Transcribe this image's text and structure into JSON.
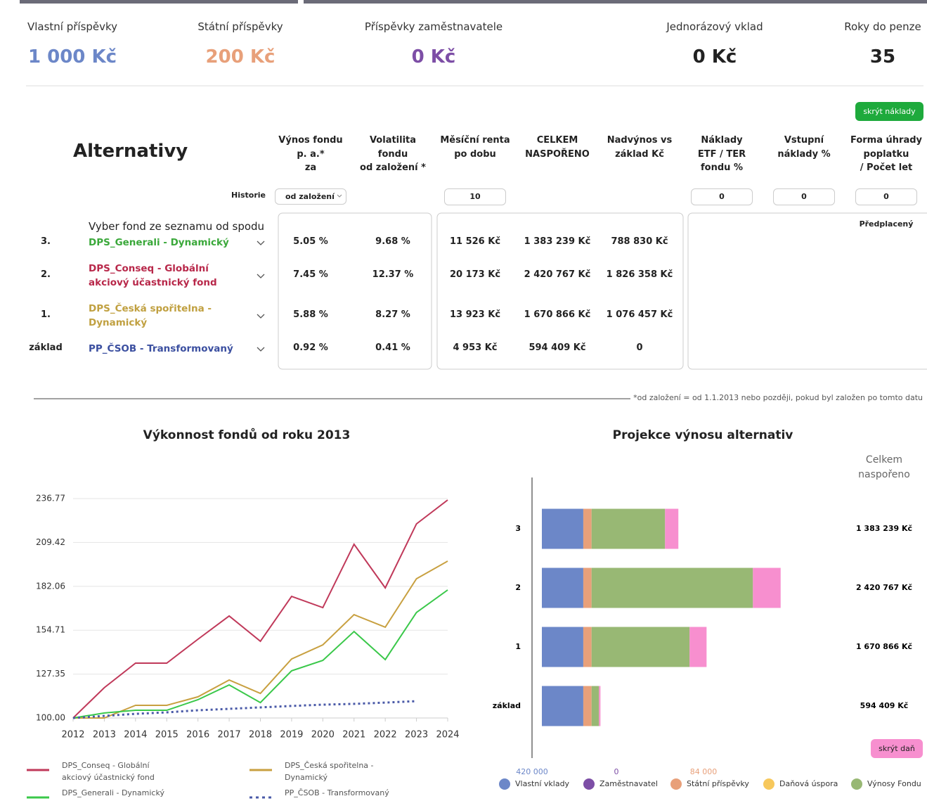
{
  "summary": [
    {
      "label": "Vlastní příspěvky",
      "value": "1 000 Kč",
      "color": "#6c87c8"
    },
    {
      "label": "Státní příspěvky",
      "value": "200 Kč",
      "color": "#e8a07a"
    },
    {
      "label": "Příspěvky zaměstnavatele",
      "value": "0 Kč",
      "color": "#7d4ea6"
    },
    {
      "label": "Jednorázový vklad",
      "value": "0 Kč",
      "color": "#222222"
    },
    {
      "label": "Roky do penze",
      "value": "35",
      "color": "#222222"
    }
  ],
  "table": {
    "title": "Alternativy",
    "button": "skrýt náklady",
    "headers": [
      "Výnos fondu\np. a.*\nza",
      "Volatilita\nfondu\nod založení *",
      "Měsíční renta\npo dobu",
      "CELKEM\nNASPOŘENO",
      "Nadvýnos vs\nzáklad Kč",
      "Náklady\nETF / TER\nfondu %",
      "Vstupní\nnáklady %",
      "Forma úhrady\npoplatku\n/ Počet let"
    ],
    "history_label": "Historie",
    "history_select": "od založení",
    "inputs": {
      "months": "10",
      "ter": "0",
      "entry": "0",
      "years": "0"
    },
    "fee_form": "Předplacený",
    "select_prompt": "Vyber fond ze seznamu od spodu",
    "rows": [
      {
        "rank": "3.",
        "fund": "DPS_Generali - Dynamický",
        "color": "#3aa83a",
        "cells": [
          "5.05 %",
          "9.68 %",
          "11 526 Kč",
          "1 383 239 Kč",
          "788 830 Kč"
        ]
      },
      {
        "rank": "2.",
        "fund": "DPS_Conseq - Globální akciový účastnický fond",
        "color": "#b8284a",
        "cells": [
          "7.45 %",
          "12.37 %",
          "20 173 Kč",
          "2 420 767 Kč",
          "1 826 358 Kč"
        ]
      },
      {
        "rank": "1.",
        "fund": "DPS_Česká spořitelna - Dynamický",
        "color": "#c0a040",
        "cells": [
          "5.88 %",
          "8.27 %",
          "13 923 Kč",
          "1 670 866 Kč",
          "1 076 457 Kč"
        ]
      },
      {
        "rank": "základ",
        "fund": "PP_ČSOB - Transformovaný",
        "color": "#3b4fa0",
        "cells": [
          "0.92 %",
          "0.41 %",
          "4 953 Kč",
          "594 409 Kč",
          "0"
        ]
      }
    ],
    "footnote": "*od založení = od 1.1.2013 nebo později, pokud byl založen po tomto datu"
  },
  "chart_data": [
    {
      "type": "line",
      "title": "Výkonnost fondů od roku 2013",
      "x": [
        2012,
        2013,
        2014,
        2015,
        2016,
        2017,
        2018,
        2019,
        2020,
        2021,
        2022,
        2023,
        2024
      ],
      "xlim": [
        2012,
        2024
      ],
      "xticks": [
        2012,
        2013,
        2014,
        2015,
        2016,
        2017,
        2018,
        2019,
        2020,
        2021,
        2022,
        2023,
        2024
      ],
      "ylim": [
        100,
        236.77
      ],
      "yticks": [
        {
          "value": 100,
          "label": "100.00"
        },
        127.35,
        154.71,
        182.06,
        209.42,
        236.77
      ],
      "grid": true,
      "series": [
        {
          "name": "DPS_Conseq - Globální akciový účastnický fond",
          "color": "#c0395a",
          "dashed": false,
          "values": [
            100,
            118.9,
            134.2,
            134.2,
            149.1,
            163.6,
            147.8,
            175.8,
            168.8,
            208.3,
            181.1,
            221.0,
            235.9
          ]
        },
        {
          "name": "DPS_Česká spořitelna - Dynamický",
          "color": "#c8a040",
          "dashed": false,
          "values": [
            100,
            100,
            107.9,
            107.9,
            113.2,
            123.7,
            115.3,
            136.8,
            145.6,
            164.4,
            156.6,
            186.8,
            197.8
          ]
        },
        {
          "name": "DPS_Generali - Dynamický",
          "color": "#3ac84a",
          "dashed": false,
          "values": [
            100,
            103.1,
            104.8,
            104.8,
            111.4,
            120.6,
            109.6,
            129.4,
            135.9,
            153.9,
            136.4,
            165.8,
            179.8
          ]
        },
        {
          "name": "PP_ČSOB - Transformovaný",
          "color": "#4a5aa8",
          "dashed": true,
          "values": [
            100,
            101.3,
            102.6,
            103.5,
            104.8,
            105.7,
            106.6,
            107.5,
            108.3,
            108.8,
            109.6,
            110.5,
            null
          ]
        }
      ]
    },
    {
      "type": "bar",
      "orientation": "horizontal",
      "stacked": true,
      "title": "Projekce výnosu alternativ",
      "total_title": "Celkem naspořeno",
      "button": "skrýt daň",
      "categories": [
        "3",
        "2",
        "1",
        "základ"
      ],
      "xlim": [
        0,
        3000000
      ],
      "total_labels": [
        "1 383 239 Kč",
        "2 420 767 Kč",
        "1 670 866 Kč",
        "594 409 Kč"
      ],
      "series": [
        {
          "name": "Vlastní vklady",
          "color": "#6c87c8",
          "total_label": "420 000",
          "values": [
            420000,
            420000,
            420000,
            420000
          ]
        },
        {
          "name": "Zaměstnavatel",
          "color": "#7d4ea6",
          "total_label": "0",
          "values": [
            0,
            0,
            0,
            0
          ]
        },
        {
          "name": "Státní příspěvky",
          "color": "#e8a07a",
          "total_label": "84 000",
          "values": [
            84000,
            84000,
            84000,
            84000
          ]
        },
        {
          "name": "Daňová úspora",
          "color": "#f7c85c",
          "values": [
            0,
            0,
            0,
            0
          ]
        },
        {
          "name": "Výnosy Fondu",
          "color": "#98b874",
          "values": [
            745000,
            1636000,
            994000,
            75000
          ]
        },
        {
          "color": "#f78fcf",
          "values": [
            135000,
            281000,
            172000,
            15000
          ]
        }
      ]
    }
  ]
}
